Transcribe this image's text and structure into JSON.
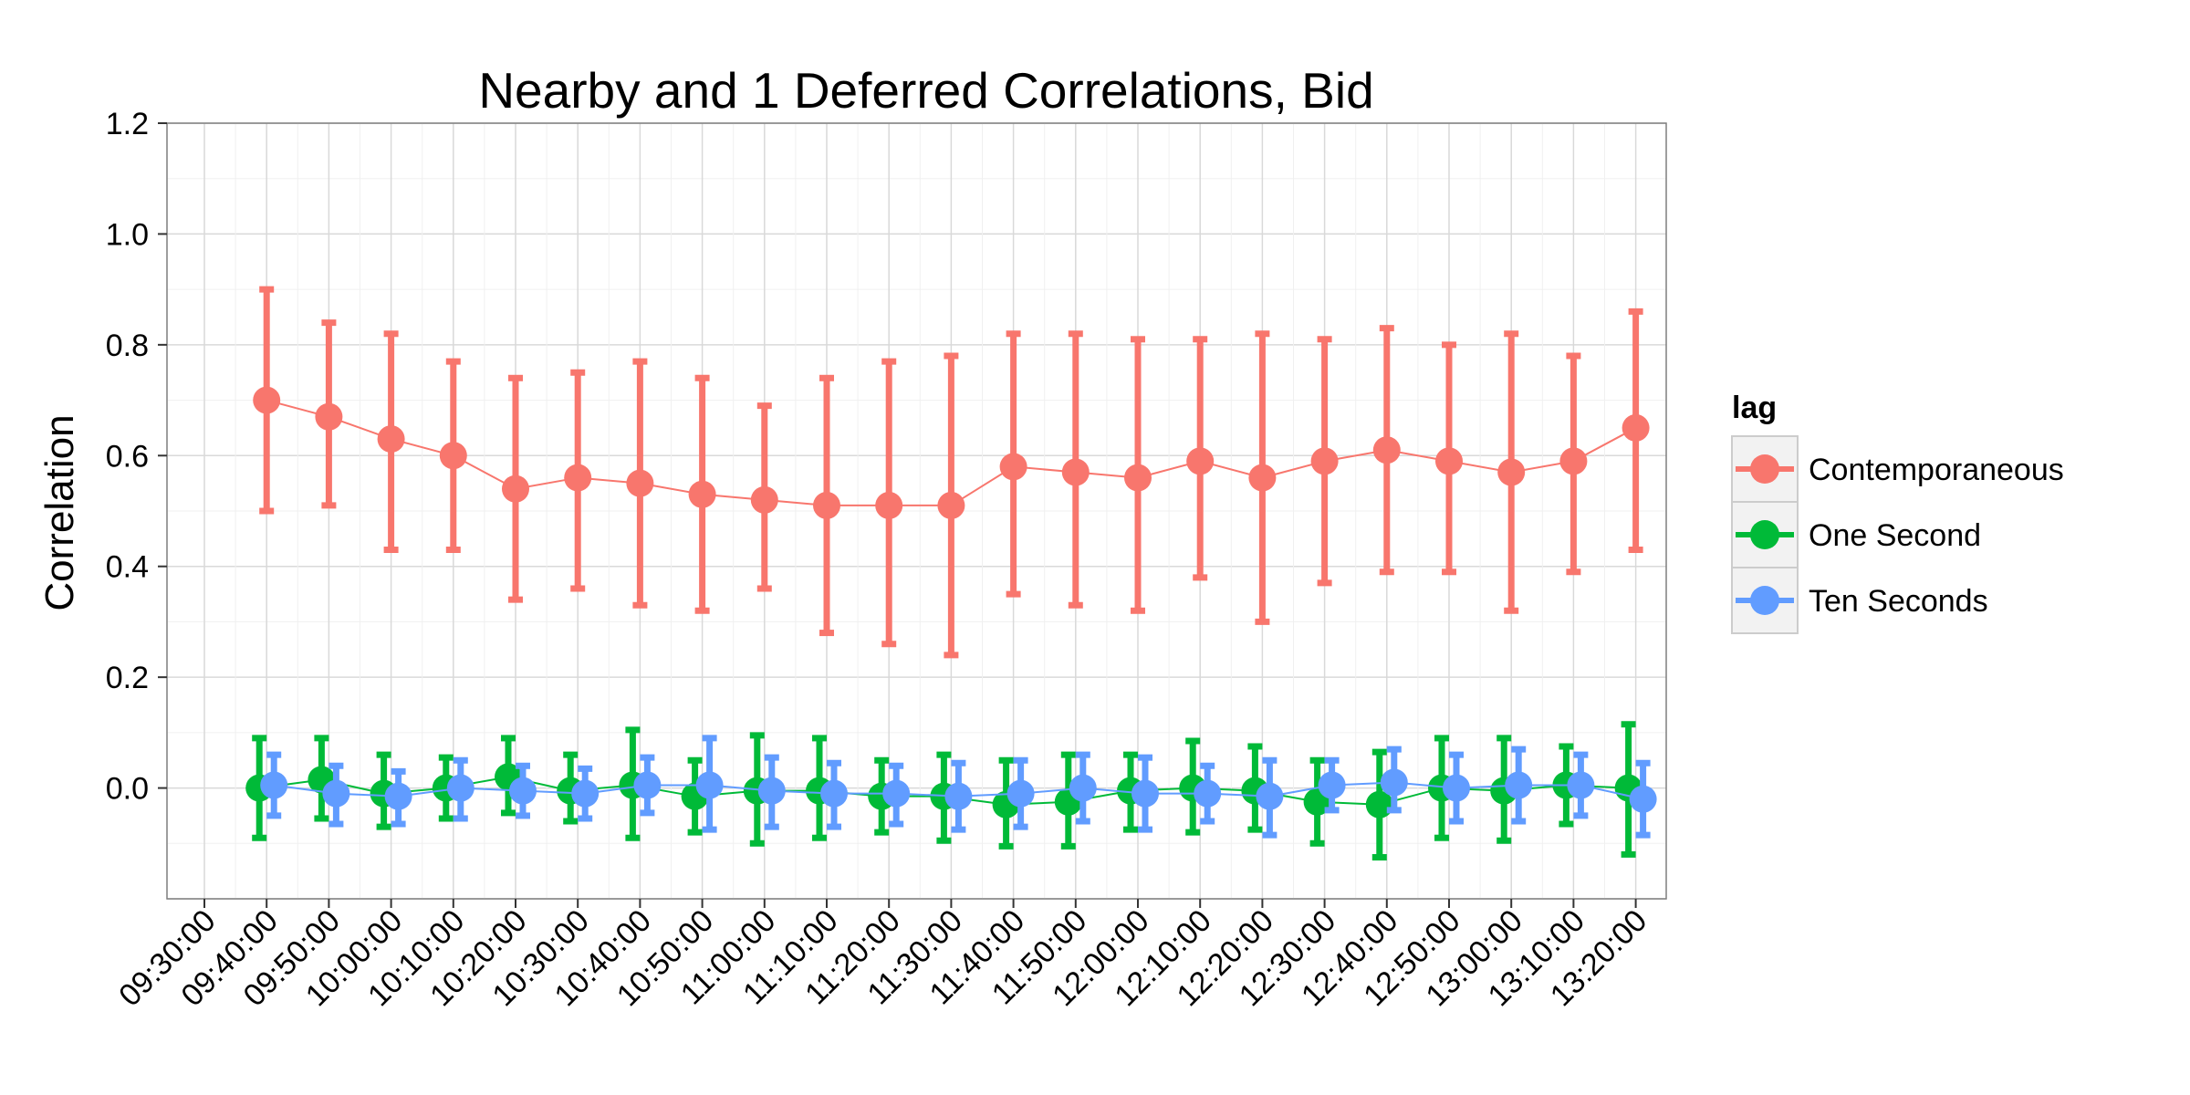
{
  "chart_data": {
    "type": "scatter",
    "title": "Nearby and 1 Deferred Correlations, Bid",
    "xlabel": "",
    "ylabel": "Correlation",
    "ylim": [
      -0.2,
      1.2
    ],
    "y_ticks": [
      "0.0",
      "0.2",
      "0.4",
      "0.6",
      "0.8",
      "1.0",
      "1.2"
    ],
    "y_tick_values": [
      0.0,
      0.2,
      0.4,
      0.6,
      0.8,
      1.0,
      1.2
    ],
    "x_ticks": [
      "09:30:00",
      "09:40:00",
      "09:50:00",
      "10:00:00",
      "10:10:00",
      "10:20:00",
      "10:30:00",
      "10:40:00",
      "10:50:00",
      "11:00:00",
      "11:10:00",
      "11:20:00",
      "11:30:00",
      "11:40:00",
      "11:50:00",
      "12:00:00",
      "12:10:00",
      "12:20:00",
      "12:30:00",
      "12:40:00",
      "12:50:00",
      "13:00:00",
      "13:10:00",
      "13:20:00"
    ],
    "x": [
      "09:40:00",
      "09:50:00",
      "10:00:00",
      "10:10:00",
      "10:20:00",
      "10:30:00",
      "10:40:00",
      "10:50:00",
      "11:00:00",
      "11:10:00",
      "11:20:00",
      "11:30:00",
      "11:40:00",
      "11:50:00",
      "12:00:00",
      "12:10:00",
      "12:20:00",
      "12:30:00",
      "12:40:00",
      "12:50:00",
      "13:00:00",
      "13:10:00",
      "13:20:00"
    ],
    "grid": true,
    "legend": {
      "title": "lag",
      "position": "right"
    },
    "series": [
      {
        "name": "Contemporaneous",
        "color": "#F8766D",
        "values": [
          0.7,
          0.67,
          0.63,
          0.6,
          0.54,
          0.56,
          0.55,
          0.53,
          0.52,
          0.51,
          0.51,
          0.51,
          0.58,
          0.57,
          0.56,
          0.59,
          0.56,
          0.59,
          0.61,
          0.59,
          0.57,
          0.59,
          0.65
        ],
        "lower": [
          0.5,
          0.51,
          0.43,
          0.43,
          0.34,
          0.36,
          0.33,
          0.32,
          0.36,
          0.28,
          0.26,
          0.24,
          0.35,
          0.33,
          0.32,
          0.38,
          0.3,
          0.37,
          0.39,
          0.39,
          0.32,
          0.39,
          0.43
        ],
        "upper": [
          0.9,
          0.84,
          0.82,
          0.77,
          0.74,
          0.75,
          0.77,
          0.74,
          0.69,
          0.74,
          0.77,
          0.78,
          0.82,
          0.82,
          0.81,
          0.81,
          0.82,
          0.81,
          0.83,
          0.8,
          0.82,
          0.78,
          0.86
        ]
      },
      {
        "name": "One Second",
        "color": "#00BA38",
        "values": [
          0.0,
          0.015,
          -0.01,
          0.0,
          0.02,
          -0.005,
          0.005,
          -0.015,
          -0.005,
          -0.005,
          -0.015,
          -0.015,
          -0.03,
          -0.025,
          -0.005,
          0.0,
          -0.005,
          -0.025,
          -0.03,
          0.0,
          -0.005,
          0.005,
          0.0
        ],
        "lower": [
          -0.09,
          -0.055,
          -0.07,
          -0.055,
          -0.045,
          -0.06,
          -0.09,
          -0.08,
          -0.1,
          -0.09,
          -0.08,
          -0.095,
          -0.105,
          -0.105,
          -0.075,
          -0.08,
          -0.075,
          -0.1,
          -0.125,
          -0.09,
          -0.095,
          -0.065,
          -0.12
        ],
        "upper": [
          0.09,
          0.09,
          0.06,
          0.055,
          0.09,
          0.06,
          0.105,
          0.05,
          0.095,
          0.09,
          0.05,
          0.06,
          0.05,
          0.06,
          0.06,
          0.085,
          0.075,
          0.05,
          0.065,
          0.09,
          0.09,
          0.075,
          0.115
        ]
      },
      {
        "name": "Ten Seconds",
        "color": "#619CFF",
        "values": [
          0.005,
          -0.01,
          -0.015,
          0.0,
          -0.005,
          -0.01,
          0.005,
          0.005,
          -0.005,
          -0.01,
          -0.01,
          -0.015,
          -0.01,
          0.0,
          -0.01,
          -0.01,
          -0.015,
          0.005,
          0.01,
          0.0,
          0.005,
          0.005,
          -0.02
        ],
        "lower": [
          -0.05,
          -0.065,
          -0.065,
          -0.055,
          -0.05,
          -0.055,
          -0.045,
          -0.075,
          -0.07,
          -0.07,
          -0.065,
          -0.075,
          -0.07,
          -0.06,
          -0.075,
          -0.06,
          -0.085,
          -0.04,
          -0.04,
          -0.06,
          -0.06,
          -0.05,
          -0.085
        ],
        "upper": [
          0.06,
          0.04,
          0.03,
          0.05,
          0.04,
          0.035,
          0.055,
          0.09,
          0.055,
          0.045,
          0.04,
          0.045,
          0.05,
          0.06,
          0.055,
          0.04,
          0.05,
          0.05,
          0.07,
          0.06,
          0.07,
          0.06,
          0.045
        ]
      }
    ]
  }
}
